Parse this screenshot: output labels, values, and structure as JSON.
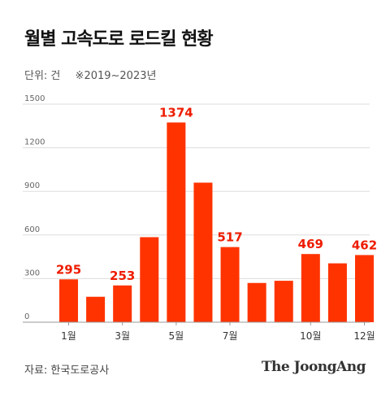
{
  "header": {
    "title": "월별 고속도로 로드킬 현황",
    "unit": "단위: 건",
    "period": "※2019~2023년"
  },
  "footer": {
    "source": "자료: 한국도로공사",
    "brand": "The JoongAng"
  },
  "colors": {
    "bar": "#ff3300",
    "highlight_label": "#ee1c00",
    "grid": "#dddddd",
    "axis": "#999999",
    "text": "#222222"
  },
  "chart_data": {
    "type": "bar",
    "title": "월별 고속도로 로드킬 현황",
    "ylabel": "단위: 건",
    "ylim": [
      0,
      1500
    ],
    "yticks": [
      0,
      300,
      600,
      900,
      1200,
      1500
    ],
    "grid": true,
    "categories": [
      "1월",
      "2월",
      "3월",
      "4월",
      "5월",
      "6월",
      "7월",
      "8월",
      "9월",
      "10월",
      "11월",
      "12월"
    ],
    "tick_labels": [
      "1월",
      "",
      "3월",
      "",
      "5월",
      "",
      "7월",
      "",
      "",
      "10월",
      "",
      "12월"
    ],
    "values": [
      295,
      175,
      253,
      585,
      1374,
      960,
      517,
      270,
      285,
      469,
      405,
      462
    ],
    "data_labels": [
      "295",
      "",
      "253",
      "",
      "1374",
      "",
      "517",
      "",
      "",
      "469",
      "",
      "462"
    ]
  }
}
